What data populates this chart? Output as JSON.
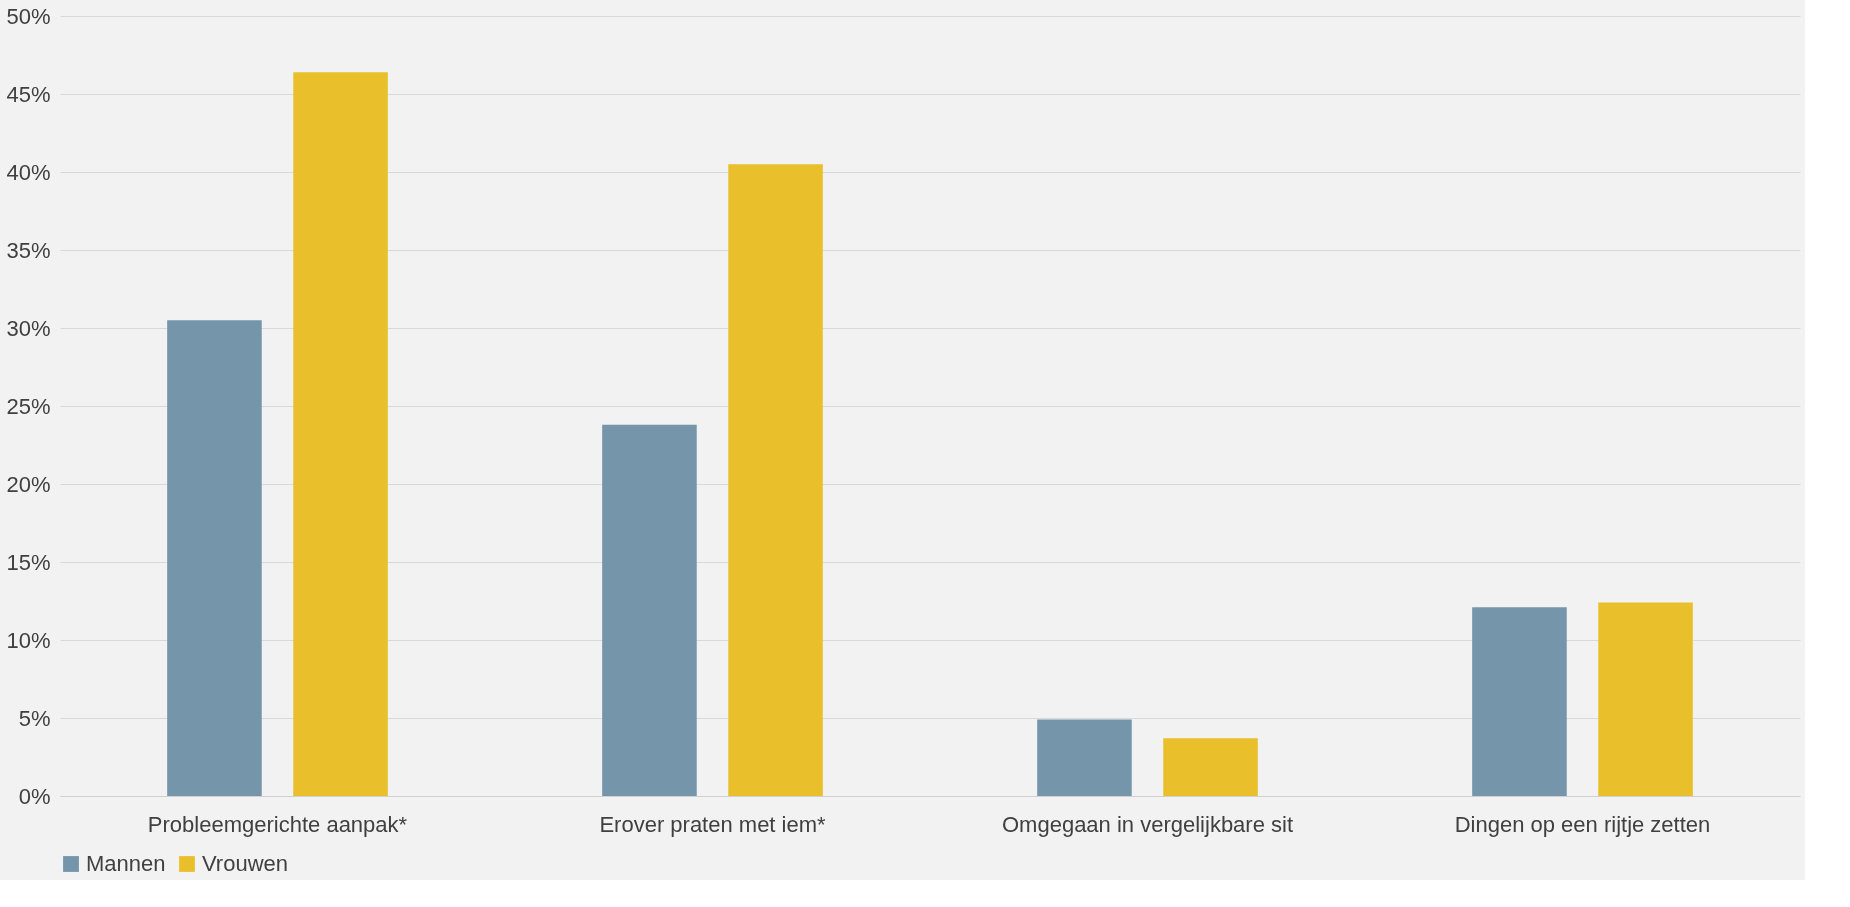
{
  "chart_data": {
    "type": "bar",
    "categories": [
      "Probleemgerichte aanpak*",
      "Erover praten met iem*",
      "Omgegaan in vergelijkbare sit",
      "Dingen op een rijtje zetten"
    ],
    "series": [
      {
        "name": "Mannen",
        "color": "#7495aa",
        "values": [
          30.5,
          23.8,
          4.9,
          12.1
        ]
      },
      {
        "name": "Vrouwen",
        "color": "#e9bf2b",
        "values": [
          46.4,
          40.5,
          3.7,
          12.4
        ]
      }
    ],
    "ylim": [
      0,
      50
    ],
    "yticks": [
      {
        "value": 0,
        "label": "0%"
      },
      {
        "value": 5,
        "label": "5%"
      },
      {
        "value": 10,
        "label": "10%"
      },
      {
        "value": 15,
        "label": "15%"
      },
      {
        "value": 20,
        "label": "20%"
      },
      {
        "value": 25,
        "label": "25%"
      },
      {
        "value": 30,
        "label": "30%"
      },
      {
        "value": 35,
        "label": "35%"
      },
      {
        "value": 40,
        "label": "40%"
      },
      {
        "value": 45,
        "label": "45%"
      },
      {
        "value": 50,
        "label": "50%"
      }
    ],
    "grid": "y",
    "legend": "bottom"
  }
}
